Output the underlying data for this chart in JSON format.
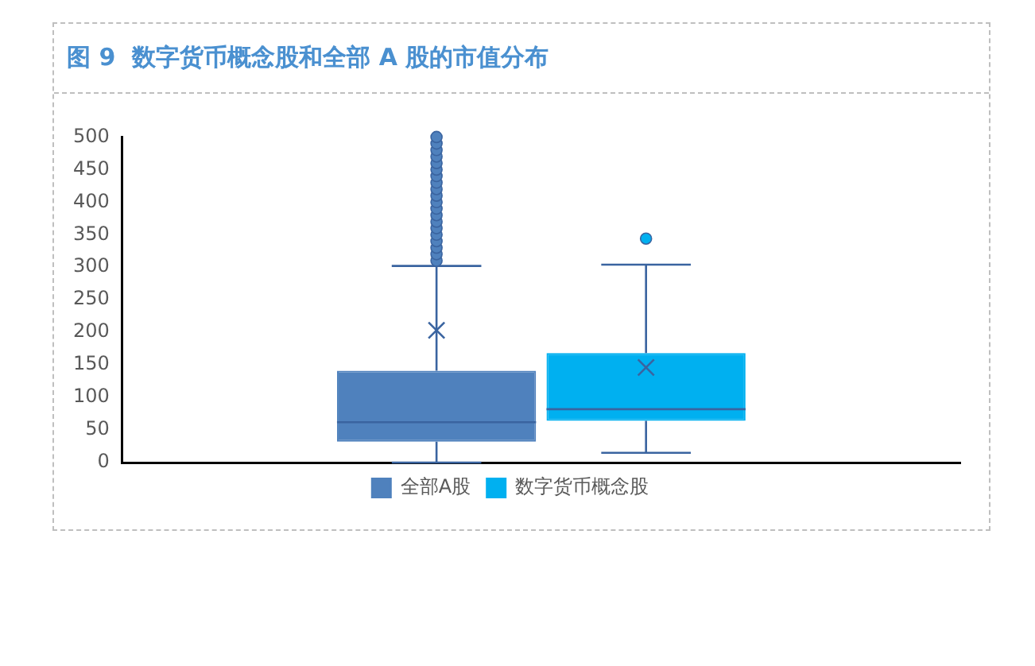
{
  "chart_data": {
    "type": "box",
    "title": "图 9  数字货币概念股和全部 A 股的市值分布",
    "categories": [
      null
    ],
    "ylim": [
      0,
      500
    ],
    "yticks": [
      0,
      50,
      100,
      150,
      200,
      250,
      300,
      350,
      400,
      450,
      500
    ],
    "grid": false,
    "legend": "bottom",
    "series": [
      {
        "name": "全部A股",
        "color": "#4f81bd",
        "boxes": [
          {
            "low": 0,
            "q1": 32,
            "median": 62,
            "q3": 141,
            "high": 302,
            "mean": 203,
            "outliers": [
              310,
              320,
              330,
              340,
              350,
              360,
              370,
              380,
              390,
              400,
              410,
              420,
              430,
              440,
              450,
              460,
              470,
              480,
              490,
              500
            ]
          }
        ]
      },
      {
        "name": "数字货币概念股",
        "color": "#00b0f0",
        "boxes": [
          {
            "low": 15,
            "q1": 64,
            "median": 82,
            "q3": 168,
            "high": 304,
            "mean": 146,
            "outliers": [
              344
            ]
          }
        ]
      }
    ]
  }
}
